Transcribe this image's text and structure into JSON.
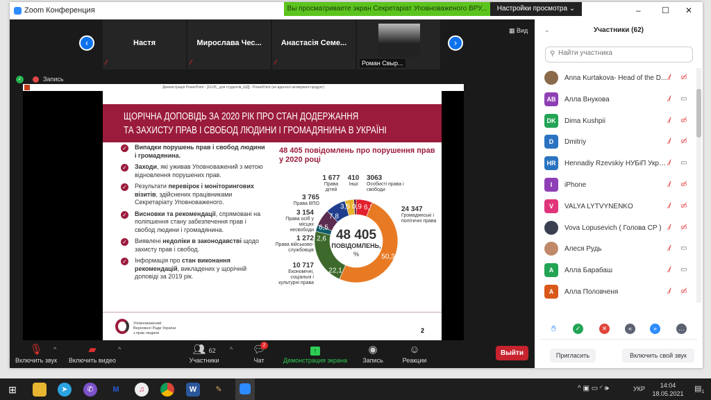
{
  "window": {
    "title": "Zoom Конференция",
    "banner": "Вы просматриваете экран Секретаріат Уповноваженого ВРУ...",
    "view_settings": "Настройки просмотра ⌄",
    "minimize": "–",
    "maximize": "☐",
    "close": "✕"
  },
  "strip": {
    "view_label": "Вид",
    "tiles": [
      "Настя",
      "Мирослава  Чес...",
      "Анастасія Семе...",
      "Роман Свыр..."
    ]
  },
  "recording": "Запись",
  "ppt": {
    "title": "Демонстрація PowerPoint - [10.05_ для студентів_ШД] - PowerPoint (не вдалося активувати продукт)",
    "slide": {
      "title_line1": "ЩОРІЧНА ДОПОВІДЬ ЗА 2020 РІК ПРО СТАН ДОДЕРЖАННЯ",
      "title_line2": "ТА ЗАХИСТУ ПРАВ І СВОБОД ЛЮДИНИ І ГРОМАДЯНИНА В УКРАЇНІ",
      "bullets": [
        {
          "bold": "Випадки порушень прав і свобод людини і громадянина.",
          "rest": ""
        },
        {
          "bold": "Заходи",
          "rest": ", які уживав Уповноважений з метою відновлення порушених прав."
        },
        {
          "pre": "Результати ",
          "bold": "перевірок і моніторингових візитів",
          "rest": ", здійснених працівниками Секретаріату Уповноваженого."
        },
        {
          "bold": "Висновки та рекомендації",
          "rest": ", спрямовані на поліпшення стану забезпечення прав і свобод людини і громадянина."
        },
        {
          "pre": "Виявлені ",
          "bold": "недоліки в законодавстві",
          "rest": " щодо захисту прав і свобод."
        },
        {
          "pre": "Інформація про ",
          "bold": "стан виконання рекомендацій",
          "rest": ", викладених у щорічній доповіді за 2019 рік."
        }
      ],
      "logo_text": [
        "Уповноважений",
        "Верховної Ради України",
        "з прав людини"
      ],
      "page_number": "2"
    }
  },
  "chart_data": {
    "type": "pie",
    "title": "48 405 повідомлень про порушення прав у 2020 році",
    "center_value": "48 405",
    "center_label": "ПОВІДОМЛЕНЬ,",
    "center_unit": "%",
    "slices": [
      {
        "label": "Особисті права і свободи",
        "count": "3063",
        "pct": 6.3,
        "pct_label": "6,3",
        "color": "#e3202e"
      },
      {
        "label": "Громадянські і політичні права",
        "count": "24 347",
        "pct": 50.3,
        "pct_label": "50,3",
        "color": "#e87a24"
      },
      {
        "label": "Економічні, соціальні і культурні права",
        "count": "10 717",
        "pct": 22.1,
        "pct_label": "22,1",
        "color": "#3d6a2c"
      },
      {
        "label": "Права військово-службовців",
        "count": "1 272",
        "pct": 2.6,
        "pct_label": "2,6",
        "color": "#0f5b69"
      },
      {
        "label": "Права осіб у місцях несвободи",
        "count": "3 154",
        "pct": 6.5,
        "pct_label": "6,5",
        "color": "#5b2c50"
      },
      {
        "label": "Права ВПО",
        "count": "3 765",
        "pct": 7.8,
        "pct_label": "7,8",
        "color": "#1f3e8e"
      },
      {
        "label": "Права дітей",
        "count": "1 677",
        "pct": 3.5,
        "pct_label": "3,5",
        "color": "#e8b22c"
      },
      {
        "label": "Інші",
        "count": "410",
        "pct": 0.9,
        "pct_label": "0,9",
        "color": "#5c1231"
      }
    ]
  },
  "toolbar": {
    "unmute": "Включить звук",
    "video": "Включить видео",
    "participants": "Участники",
    "participants_count": "62",
    "chat": "Чат",
    "chat_badge": "2",
    "share": "Демонстрация экрана",
    "record": "Запись",
    "reactions": "Реакции",
    "leave": "Выйти"
  },
  "panel": {
    "title": "Участники (62)",
    "search_placeholder": "Найти участника",
    "participants": [
      {
        "name": "Anna Kurtakova- Head of the D...",
        "initials": "",
        "color": "#8a6a4a",
        "video_off": true
      },
      {
        "name": "Алла Внукова",
        "initials": "AB",
        "color": "#8e3fb5",
        "video_off": false
      },
      {
        "name": "Dima Kushpii",
        "initials": "DK",
        "color": "#23a455",
        "video_off": true
      },
      {
        "name": "Dmitriy",
        "initials": "D",
        "color": "#2a73c0",
        "video_off": true
      },
      {
        "name": "Hennadiy Rzevskiy НУБіП Украї...",
        "initials": "HR",
        "color": "#2a73c0",
        "video_off": false
      },
      {
        "name": "iPhone",
        "initials": "I",
        "color": "#8e3fb5",
        "video_off": true
      },
      {
        "name": "VALYA LYTVYNENKO",
        "initials": "V",
        "color": "#e0357a",
        "video_off": true
      },
      {
        "name": "Vova Lopusevich ( Голова СР )",
        "initials": "",
        "color": "#3a4050",
        "video_off": true
      },
      {
        "name": "Алеся Рудь",
        "initials": "",
        "color": "#c08a6a",
        "video_off": false
      },
      {
        "name": "Алла Барабаш",
        "initials": "A",
        "color": "#23a455",
        "video_off": false
      },
      {
        "name": "Алла Половченя",
        "initials": "A",
        "color": "#d9591a",
        "video_off": true
      }
    ],
    "invite": "Пригласить",
    "unmute_self": "Включить свой звук"
  },
  "taskbar": {
    "lang": "УКР",
    "time": "14:04",
    "date": "18.05.2021",
    "notif_count": "1"
  }
}
